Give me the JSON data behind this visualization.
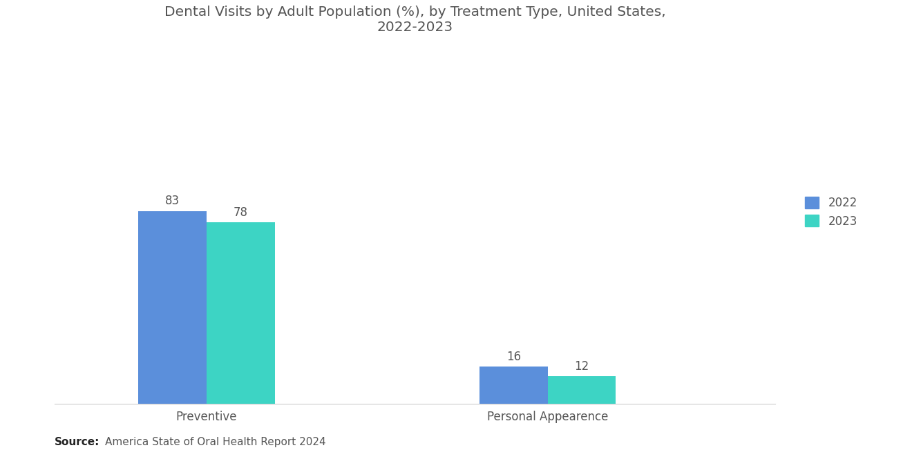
{
  "title": "Dental Visits by Adult Population (%), by Treatment Type, United States,\n2022-2023",
  "categories": [
    "Preventive",
    "Personal Appearence"
  ],
  "values_2022": [
    83,
    16
  ],
  "values_2023": [
    78,
    12
  ],
  "color_2022": "#5B8FDB",
  "color_2023": "#3DD4C4",
  "label_2022": "2022",
  "label_2023": "2023",
  "bar_width": 0.18,
  "ylim": [
    0,
    150
  ],
  "source_bold": "Source:",
  "source_text": "America State of Oral Health Report 2024",
  "title_fontsize": 14.5,
  "label_fontsize": 12,
  "value_fontsize": 12,
  "source_fontsize": 11,
  "background_color": "#ffffff",
  "text_color": "#555555"
}
